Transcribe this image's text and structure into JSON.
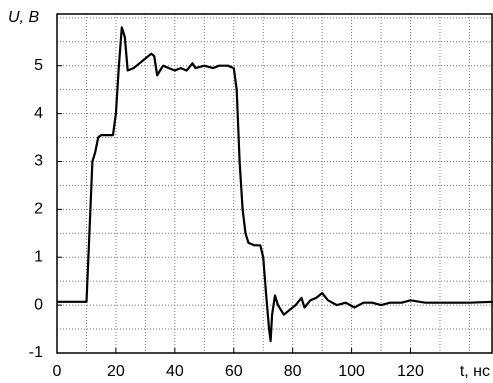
{
  "chart_data": {
    "type": "line",
    "xlabel": "t, нс",
    "ylabel": "U, В",
    "x": [
      0,
      10,
      11,
      12,
      13,
      14,
      15,
      19,
      20,
      21,
      22,
      23,
      24,
      26,
      28,
      30,
      32,
      33,
      34,
      35,
      36,
      38,
      40,
      42,
      44,
      46,
      47,
      50,
      53,
      55,
      58,
      60,
      61,
      62,
      63,
      64,
      65,
      67,
      69,
      70,
      71,
      72,
      72.5,
      73,
      74,
      75,
      77,
      79,
      81,
      83,
      84,
      86,
      88,
      90,
      92,
      95,
      98,
      101,
      104,
      107,
      110,
      113,
      117,
      120,
      125,
      130,
      140,
      148
    ],
    "series": [
      {
        "color": "#000000",
        "values": [
          0.07,
          0.07,
          1.5,
          3.0,
          3.2,
          3.5,
          3.55,
          3.55,
          4.0,
          5.0,
          5.8,
          5.6,
          4.9,
          4.95,
          5.05,
          5.15,
          5.25,
          5.2,
          4.8,
          4.9,
          5.0,
          4.95,
          4.9,
          4.95,
          4.9,
          5.05,
          4.95,
          5.0,
          4.95,
          5.0,
          5.0,
          4.95,
          4.5,
          3.0,
          2.0,
          1.5,
          1.3,
          1.25,
          1.25,
          1.0,
          0.2,
          -0.5,
          -0.75,
          -0.2,
          0.2,
          0.0,
          -0.2,
          -0.1,
          0.0,
          0.15,
          -0.05,
          0.1,
          0.15,
          0.25,
          0.1,
          0.0,
          0.05,
          -0.05,
          0.05,
          0.05,
          0.0,
          0.05,
          0.05,
          0.1,
          0.05,
          0.05,
          0.05,
          0.07
        ]
      }
    ],
    "xlim": [
      0,
      148
    ],
    "ylim": [
      -1,
      6.08
    ],
    "xticks": [
      0,
      20,
      40,
      60,
      80,
      100,
      120
    ],
    "yticks": [
      -1,
      0,
      1,
      2,
      3,
      4,
      5
    ],
    "xgrid": [
      10,
      20,
      30,
      40,
      50,
      60,
      70,
      80,
      90,
      100,
      110,
      120,
      130,
      140
    ],
    "ygrid": [
      -0.5,
      0,
      0.5,
      1,
      1.5,
      2,
      2.5,
      3,
      3.5,
      4,
      4.5,
      5,
      5.5,
      6
    ]
  }
}
